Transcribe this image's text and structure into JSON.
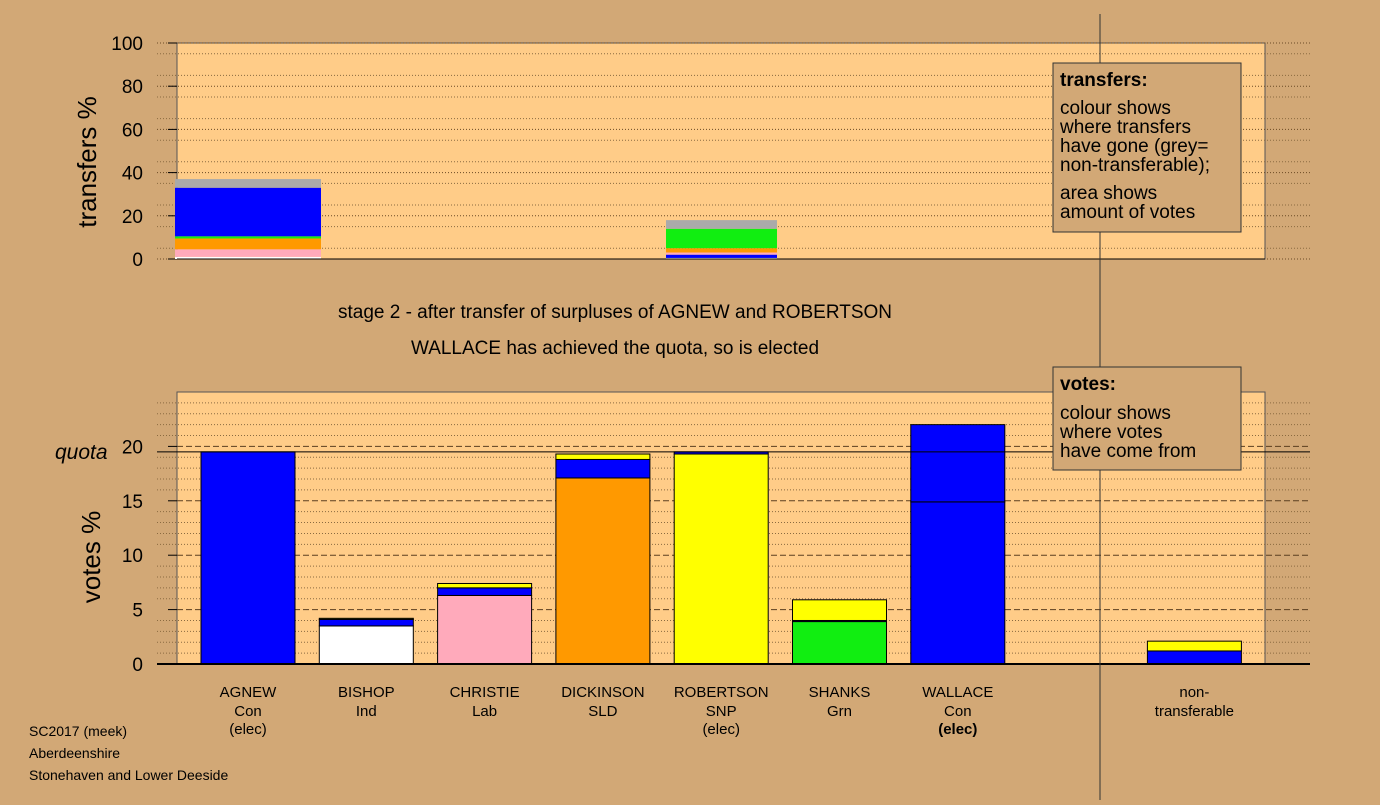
{
  "stage_text": {
    "line1": "stage 2 - after transfer of surpluses of AGNEW and ROBERTSON",
    "line2": "WALLACE has achieved the quota, so is elected"
  },
  "legend_transfers": {
    "title": "transfers:",
    "lines": [
      "colour shows",
      "where transfers",
      "have gone (grey=",
      "non-transferable);",
      "area shows",
      "amount of votes"
    ]
  },
  "legend_votes": {
    "title": "votes:",
    "lines": [
      "colour shows",
      "where votes",
      "have come from"
    ]
  },
  "footer": {
    "line1": "SC2017 (meek)",
    "line2": "Aberdeenshire",
    "line3": "Stonehaven and Lower Deeside"
  },
  "colors": {
    "background": "#d2a876",
    "plot_bg": "#ffcc88",
    "Con": "#0000ff",
    "Ind": "#ffffff",
    "Lab": "#ffaabb",
    "SLD": "#ff9900",
    "SNP": "#ffff00",
    "Grn": "#11ee11",
    "nontransferable": "#aaaaaa"
  },
  "chart_data": [
    {
      "type": "bar",
      "stacked": true,
      "ylabel": "transfers %",
      "ylim": [
        0,
        100
      ],
      "yticks": [
        0,
        20,
        40,
        60,
        80,
        100
      ],
      "grid": "dotted",
      "bars": [
        {
          "from": "AGNEW",
          "segments": [
            {
              "party": "Ind",
              "value": 1.0
            },
            {
              "party": "Lab",
              "value": 3.5
            },
            {
              "party": "SLD",
              "value": 5.0
            },
            {
              "party": "Grn",
              "value": 1.0
            },
            {
              "party": "Con",
              "value": 22.5
            },
            {
              "party": "nontransferable",
              "value": 4.0
            }
          ]
        },
        {
          "from": "ROBERTSON",
          "segments": [
            {
              "party": "Ind",
              "value": 0.5
            },
            {
              "party": "Con",
              "value": 1.5
            },
            {
              "party": "Lab",
              "value": 1.0
            },
            {
              "party": "SLD",
              "value": 2.0
            },
            {
              "party": "Grn",
              "value": 9.0
            },
            {
              "party": "nontransferable",
              "value": 4.0
            }
          ]
        }
      ]
    },
    {
      "type": "bar",
      "stacked": true,
      "ylabel": "votes %",
      "ylim": [
        0,
        25
      ],
      "yticks": [
        0,
        5,
        10,
        15,
        20
      ],
      "grid": "dashed",
      "quota": 19.5,
      "quota_label": "quota",
      "candidates": [
        {
          "name": "AGNEW",
          "party": "Con",
          "status": "(elec)",
          "status_bold": false,
          "segments": [
            {
              "party": "Con",
              "value": 19.5
            }
          ]
        },
        {
          "name": "BISHOP",
          "party": "Ind",
          "status": "",
          "status_bold": false,
          "segments": [
            {
              "party": "Ind",
              "value": 3.5
            },
            {
              "party": "Con",
              "value": 0.6
            },
            {
              "party": "SNP",
              "value": 0.1
            }
          ]
        },
        {
          "name": "CHRISTIE",
          "party": "Lab",
          "status": "",
          "status_bold": false,
          "segments": [
            {
              "party": "Lab",
              "value": 6.3
            },
            {
              "party": "Con",
              "value": 0.7
            },
            {
              "party": "SNP",
              "value": 0.4
            }
          ]
        },
        {
          "name": "DICKINSON",
          "party": "SLD",
          "status": "",
          "status_bold": false,
          "segments": [
            {
              "party": "SLD",
              "value": 17.1
            },
            {
              "party": "Con",
              "value": 1.7
            },
            {
              "party": "SNP",
              "value": 0.5
            }
          ]
        },
        {
          "name": "ROBERTSON",
          "party": "SNP",
          "status": "(elec)",
          "status_bold": false,
          "segments": [
            {
              "party": "SNP",
              "value": 19.3
            },
            {
              "party": "Con",
              "value": 0.2
            }
          ]
        },
        {
          "name": "SHANKS",
          "party": "Grn",
          "status": "",
          "status_bold": false,
          "segments": [
            {
              "party": "Grn",
              "value": 3.9
            },
            {
              "party": "Con",
              "value": 0.1
            },
            {
              "party": "SNP",
              "value": 1.9
            }
          ]
        },
        {
          "name": "WALLACE",
          "party": "Con",
          "status": "(elec)",
          "status_bold": true,
          "segments": [
            {
              "party": "Con",
              "value": 14.9
            },
            {
              "party": "Con",
              "value": 7.1
            }
          ]
        },
        {
          "name": "",
          "party": "",
          "status": "",
          "status_bold": false,
          "segments": []
        },
        {
          "name": "non-",
          "party": "transferable",
          "status": "",
          "status_bold": false,
          "segments": [
            {
              "party": "Con",
              "value": 1.2
            },
            {
              "party": "SNP",
              "value": 0.9
            }
          ]
        }
      ]
    }
  ]
}
